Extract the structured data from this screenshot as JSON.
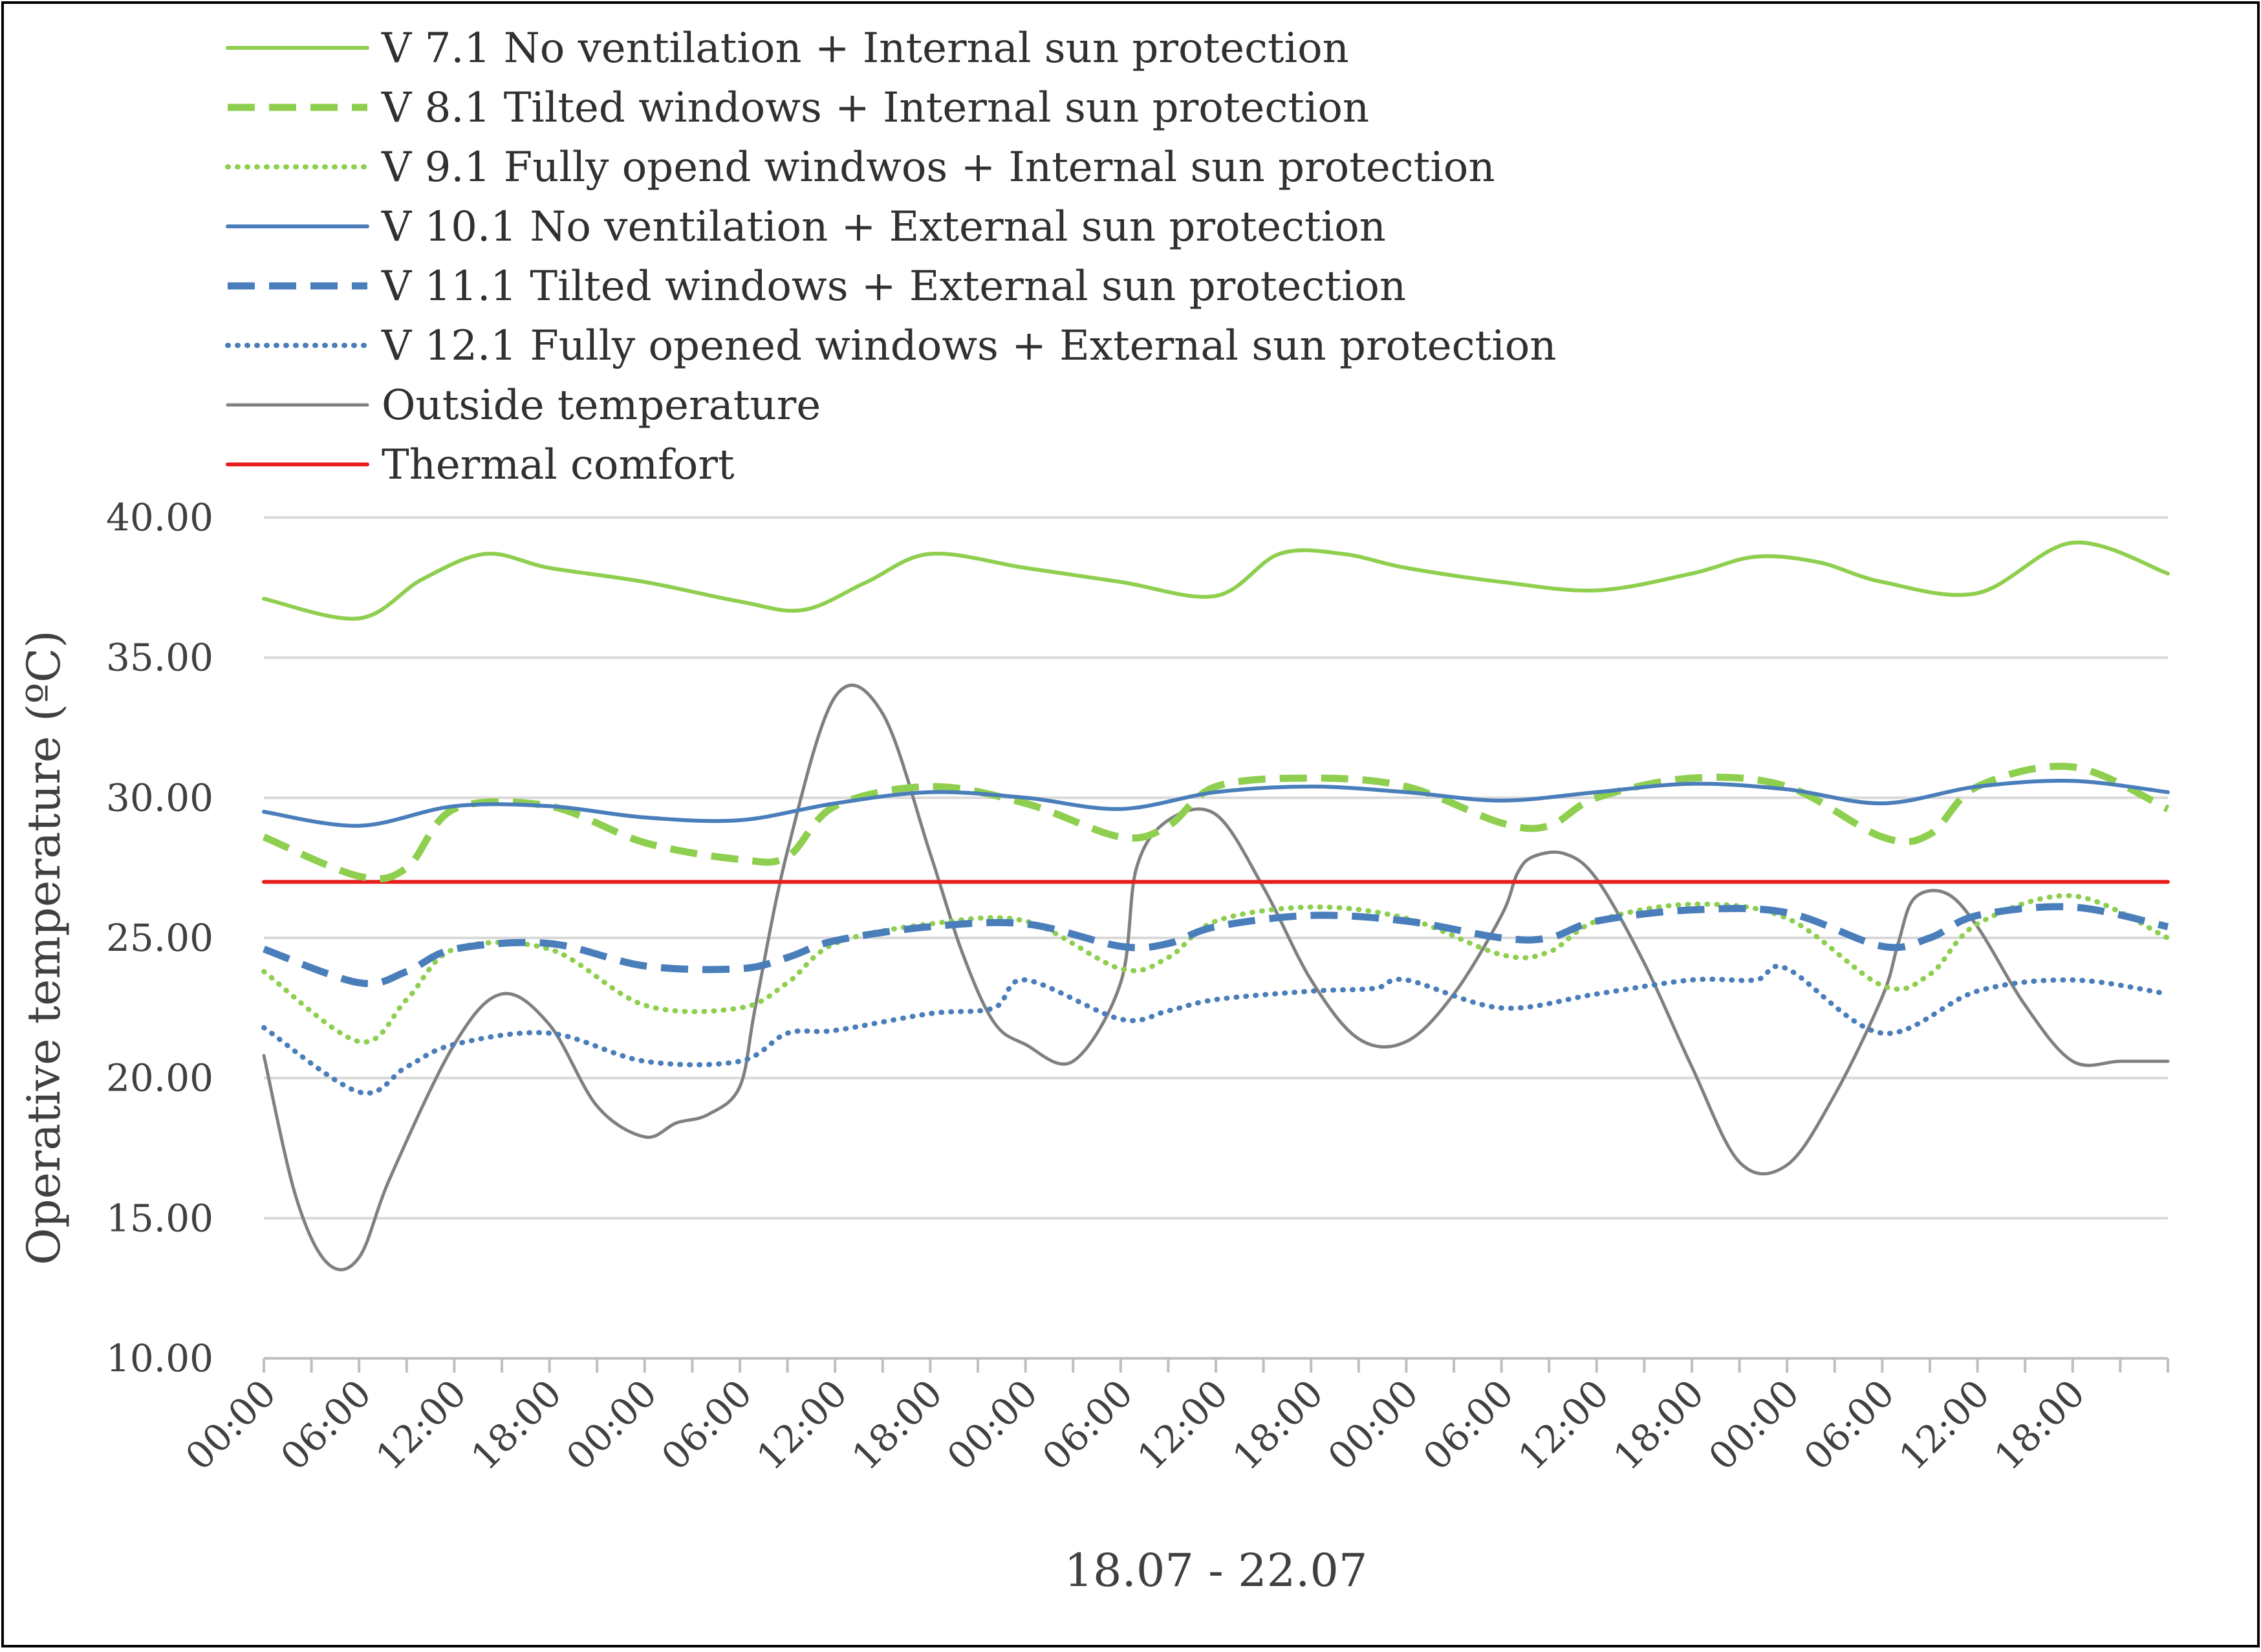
{
  "chart_data": {
    "type": "line",
    "title": "",
    "xlabel": "18.07 - 22.07",
    "ylabel": "Operative temperature (ºC)",
    "ylim": [
      10,
      40
    ],
    "yticks": [
      "10.00",
      "15.00",
      "20.00",
      "25.00",
      "30.00",
      "35.00",
      "40.00"
    ],
    "grid": true,
    "legend_position": "top",
    "x_labels": [
      "00:00",
      "06:00",
      "12:00",
      "18:00",
      "00:00",
      "06:00",
      "12:00",
      "18:00",
      "00:00",
      "06:00",
      "12:00",
      "18:00",
      "00:00",
      "06:00",
      "12:00",
      "18:00",
      "00:00",
      "06:00",
      "12:00",
      "18:00"
    ],
    "x_hours_range": [
      0,
      120
    ],
    "colors": {
      "green": "#92d050",
      "blue": "#4a7ebb",
      "gray": "#7f7f7f",
      "red": "#e81e1e",
      "grid": "#d9d9d9",
      "axis": "#bfbfbf"
    },
    "series": [
      {
        "name": "V 7.1 No ventilation + Internal sun protection",
        "color": "#8fcf4f",
        "style": "solid",
        "x": [
          0,
          6,
          10,
          14,
          18,
          24,
          30,
          34,
          38,
          42,
          48,
          54,
          60,
          64,
          68,
          72,
          78,
          84,
          90,
          94,
          98,
          102,
          108,
          114,
          120
        ],
        "values": [
          37.1,
          36.4,
          37.8,
          38.7,
          38.2,
          37.7,
          37.0,
          36.7,
          37.7,
          38.7,
          38.2,
          37.7,
          37.2,
          38.7,
          38.7,
          38.2,
          37.7,
          37.4,
          38.0,
          38.6,
          38.4,
          37.7,
          37.3,
          39.1,
          38.0
        ]
      },
      {
        "name": "V 8.1 Tilted windows + Internal sun protection",
        "color": "#8fcf4f",
        "style": "dashed",
        "x": [
          0,
          6,
          9,
          12,
          18,
          24,
          30,
          33,
          36,
          42,
          48,
          54,
          57,
          60,
          66,
          72,
          78,
          81,
          84,
          90,
          96,
          102,
          105,
          108,
          114,
          120
        ],
        "values": [
          28.6,
          27.2,
          27.5,
          29.6,
          29.7,
          28.4,
          27.8,
          27.9,
          29.7,
          30.4,
          29.8,
          28.6,
          29.0,
          30.4,
          30.7,
          30.4,
          29.1,
          29.0,
          30.0,
          30.7,
          30.4,
          28.6,
          28.7,
          30.4,
          31.1,
          29.6
        ]
      },
      {
        "name": "V 9.1 Fully opend windwos + Internal sun protection",
        "color": "#8fcf4f",
        "style": "dotted",
        "x": [
          0,
          6,
          9,
          12,
          18,
          24,
          30,
          33,
          36,
          42,
          48,
          54,
          57,
          60,
          66,
          72,
          78,
          81,
          84,
          90,
          96,
          102,
          105,
          108,
          114,
          120
        ],
        "values": [
          23.8,
          21.3,
          22.8,
          24.6,
          24.6,
          22.6,
          22.5,
          23.4,
          24.8,
          25.5,
          25.6,
          23.9,
          24.3,
          25.6,
          26.1,
          25.7,
          24.4,
          24.5,
          25.6,
          26.2,
          25.7,
          23.3,
          23.7,
          25.5,
          26.5,
          25.0
        ]
      },
      {
        "name": "V 10.1 No ventilation + External sun protection",
        "color": "#4a7ebb",
        "style": "solid",
        "x": [
          0,
          6,
          12,
          18,
          24,
          30,
          36,
          42,
          48,
          54,
          60,
          66,
          72,
          78,
          84,
          90,
          96,
          102,
          108,
          114,
          120
        ],
        "values": [
          29.5,
          29.0,
          29.7,
          29.7,
          29.3,
          29.2,
          29.8,
          30.2,
          30.0,
          29.6,
          30.2,
          30.4,
          30.2,
          29.9,
          30.2,
          30.5,
          30.3,
          29.8,
          30.4,
          30.6,
          30.2
        ]
      },
      {
        "name": "V 11.1 Tilted windows + External sun protection",
        "color": "#4a7ebb",
        "style": "dashed",
        "x": [
          0,
          6,
          9,
          12,
          18,
          24,
          30,
          33,
          36,
          42,
          48,
          54,
          57,
          60,
          66,
          72,
          78,
          81,
          84,
          90,
          96,
          102,
          105,
          108,
          114,
          120
        ],
        "values": [
          24.6,
          23.4,
          23.8,
          24.6,
          24.8,
          24.0,
          23.9,
          24.3,
          24.9,
          25.4,
          25.5,
          24.7,
          24.8,
          25.4,
          25.8,
          25.6,
          25.0,
          25.0,
          25.6,
          26.0,
          25.9,
          24.7,
          25.0,
          25.8,
          26.1,
          25.4
        ]
      },
      {
        "name": "V 12.1 Fully opened windows + External sun protection",
        "color": "#4a7ebb",
        "style": "dotted",
        "x": [
          0,
          6,
          9,
          12,
          18,
          24,
          30,
          33,
          36,
          42,
          46,
          48,
          54,
          57,
          60,
          66,
          70,
          72,
          78,
          84,
          90,
          94,
          96,
          102,
          108,
          114,
          120
        ],
        "values": [
          21.8,
          19.5,
          20.4,
          21.2,
          21.6,
          20.6,
          20.6,
          21.6,
          21.7,
          22.3,
          22.5,
          23.5,
          22.1,
          22.4,
          22.8,
          23.1,
          23.2,
          23.5,
          22.5,
          23.0,
          23.5,
          23.5,
          23.9,
          21.6,
          23.1,
          23.5,
          23.0
        ]
      },
      {
        "name": "Outside temperature",
        "color": "#808080",
        "style": "thin",
        "x": [
          0,
          2,
          4,
          6,
          8,
          12,
          15,
          18,
          21,
          24,
          26,
          28,
          30,
          31,
          33,
          36,
          39,
          42,
          44,
          46,
          48,
          51,
          54,
          55,
          57,
          60,
          63,
          66,
          69,
          72,
          75,
          78,
          79,
          80,
          82,
          84,
          87,
          90,
          93,
          96,
          99,
          102,
          103,
          104,
          106,
          108,
          111,
          114,
          117,
          120
        ],
        "values": [
          20.8,
          15.8,
          13.4,
          13.6,
          16.5,
          21.2,
          23.0,
          21.9,
          19.0,
          17.9,
          18.4,
          18.7,
          19.7,
          22.6,
          28.1,
          33.6,
          33.0,
          28.0,
          24.5,
          22.0,
          21.2,
          20.6,
          23.4,
          27.5,
          29.2,
          29.4,
          26.8,
          23.5,
          21.4,
          21.3,
          23.0,
          25.8,
          27.3,
          27.9,
          28.0,
          27.1,
          24.1,
          20.4,
          17.0,
          16.9,
          19.4,
          22.9,
          24.8,
          26.4,
          26.6,
          25.4,
          22.6,
          20.6,
          20.6,
          20.6
        ]
      },
      {
        "name": "Thermal comfort",
        "color": "#e81e1e",
        "style": "solid",
        "x": [
          0,
          120
        ],
        "values": [
          27.0,
          27.0
        ]
      }
    ]
  }
}
